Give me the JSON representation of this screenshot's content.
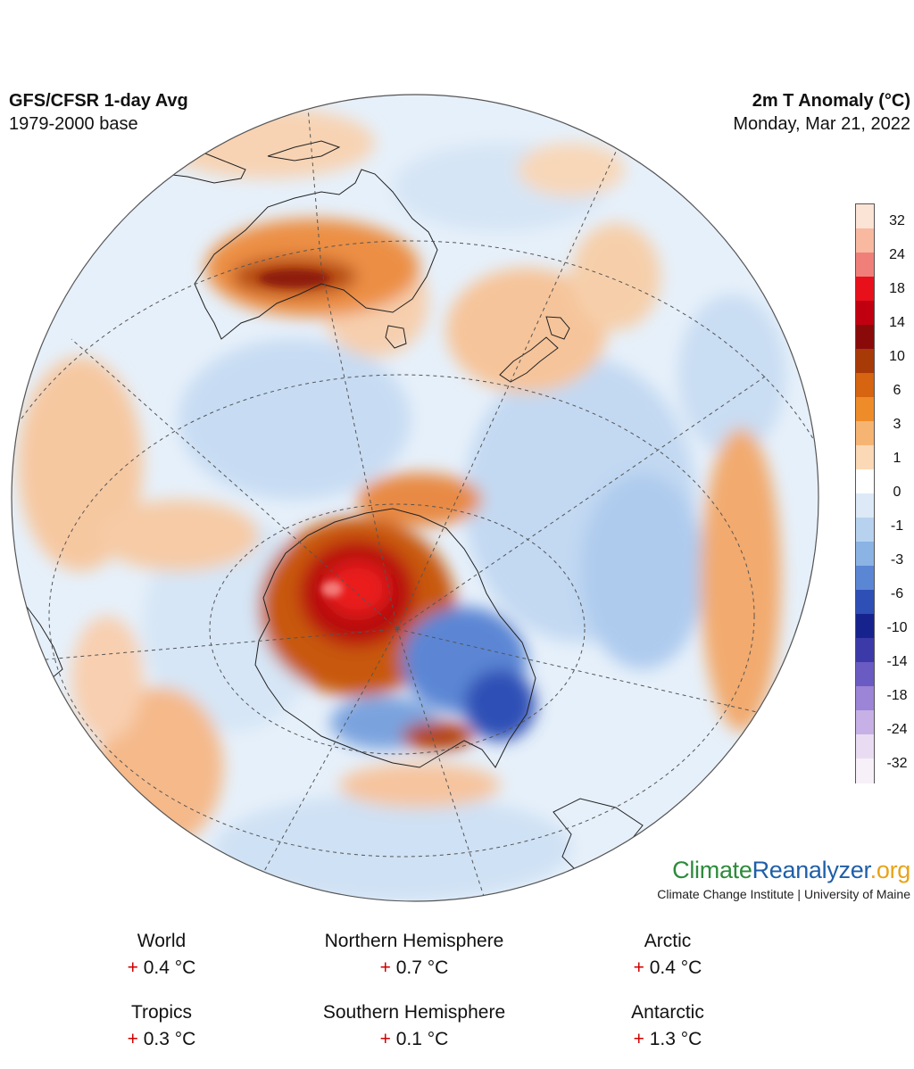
{
  "header": {
    "left_title": "GFS/CFSR 1-day Avg",
    "left_subtitle": "1979-2000 base",
    "right_title": "2m T Anomaly (°C)",
    "right_subtitle": "Monday, Mar 21, 2022"
  },
  "legend": {
    "ticks": [
      "32",
      "24",
      "18",
      "14",
      "10",
      "6",
      "3",
      "1",
      "0",
      "-1",
      "-3",
      "-6",
      "-10",
      "-14",
      "-18",
      "-24",
      "-32"
    ],
    "colors": [
      "#fbe4d5",
      "#f8b9a0",
      "#f07f7a",
      "#e8101a",
      "#c00010",
      "#8a0a0a",
      "#a83a08",
      "#d66410",
      "#ef8c2a",
      "#f6b472",
      "#fbd9b6",
      "#ffffff",
      "#dde9f7",
      "#b7d2ef",
      "#8bb3e4",
      "#5b86d4",
      "#2d4fb6",
      "#16238e",
      "#3c3aa8",
      "#6a5bc2",
      "#9c84d6",
      "#c6b0e6",
      "#e9dcf2",
      "#f7f0f8"
    ]
  },
  "brand": {
    "logo_part1": "Climate",
    "logo_part2": "Reanalyzer",
    "logo_part3": ".org",
    "logo_color1": "#2d8b3c",
    "logo_color2": "#1f5fa8",
    "logo_color3": "#e8a317",
    "tagline": "Climate Change Institute | University of Maine"
  },
  "stats": [
    {
      "region": "World",
      "sign": "+",
      "value": "0.4 °C"
    },
    {
      "region": "Northern Hemisphere",
      "sign": "+",
      "value": "0.7 °C"
    },
    {
      "region": "Arctic",
      "sign": "+",
      "value": "0.4 °C"
    },
    {
      "region": "Tropics",
      "sign": "+",
      "value": "0.3 °C"
    },
    {
      "region": "Southern Hemisphere",
      "sign": "+",
      "value": "0.1 °C"
    },
    {
      "region": "Antarctic",
      "sign": "+",
      "value": "1.3 °C"
    }
  ]
}
